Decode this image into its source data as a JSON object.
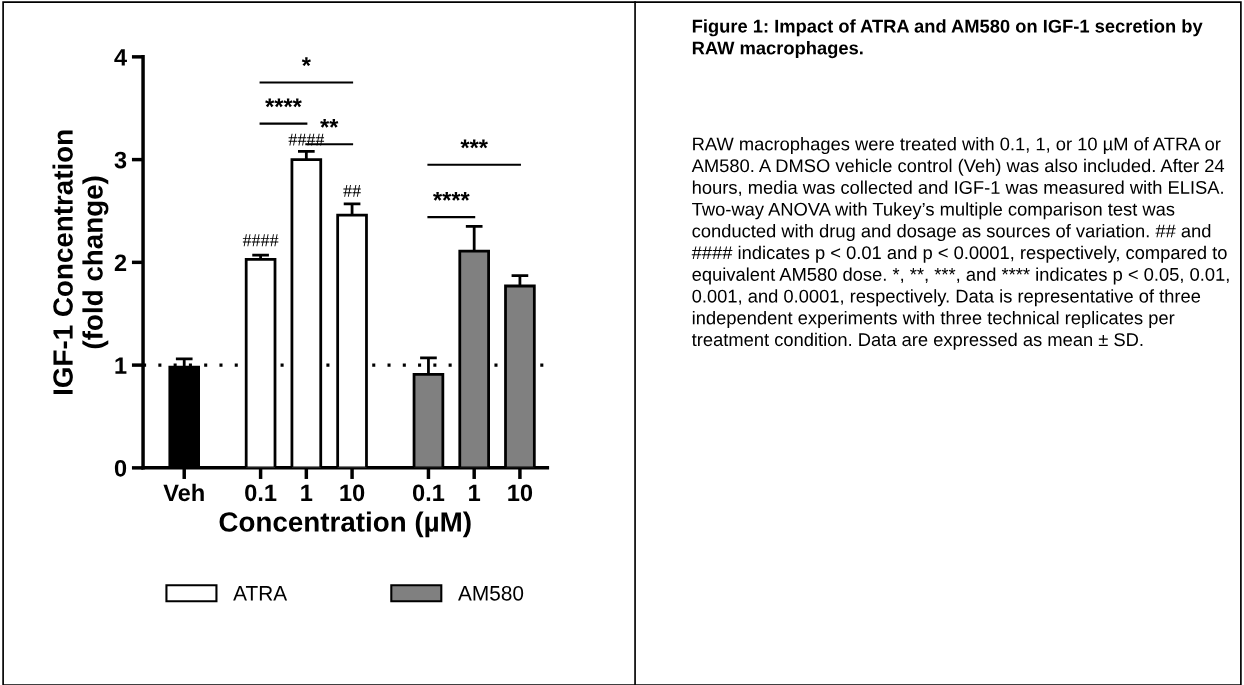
{
  "chart_data": {
    "type": "bar",
    "ylabel": "IGF-1 Concentration\n(fold change)",
    "xlabel": "Concentration (µM)",
    "title": "Figure 1: Impact of ATRA and AM580 on IGF-1 secretion by RAW macrophages.",
    "categories": [
      "Veh",
      "0.1",
      "1",
      "10",
      "0.1",
      "1",
      "10"
    ],
    "series": [
      {
        "color": "#000000",
        "values": [
          0.98,
          null,
          null,
          null,
          null,
          null,
          null
        ],
        "errors": [
          0.08,
          null,
          null,
          null,
          null,
          null,
          null
        ]
      },
      {
        "name": "ATRA",
        "color": "#ffffff",
        "values": [
          null,
          2.03,
          3.0,
          2.46,
          null,
          null,
          null
        ],
        "errors": [
          null,
          0.04,
          0.08,
          0.11,
          null,
          null,
          null
        ]
      },
      {
        "name": "AM580",
        "color": "#808080",
        "values": [
          null,
          null,
          null,
          null,
          0.91,
          2.11,
          1.77
        ],
        "errors": [
          null,
          null,
          null,
          null,
          0.16,
          0.24,
          0.1
        ]
      }
    ],
    "ylim": [
      0,
      4
    ],
    "yticks": [
      0,
      1,
      2,
      3,
      4
    ],
    "grid": false,
    "legend": "bottom",
    "ref_lines": [
      {
        "axis": "y",
        "value": 1,
        "line_style": "dotted",
        "color": "#000000"
      }
    ],
    "annotations": [
      "*",
      "****",
      "**",
      "####",
      "##",
      "####",
      "***",
      "****",
      "RAW macrophages were treated with 0.1, 1, or 10 µM of ATRA or AM580. A DMSO vehicle control (Veh) was also included. After 24 hours, media was collected and IGF-1 was measured with ELISA. Two-way ANOVA with Tukey’s multiple comparison test was conducted with drug and dosage as sources of variation. ## and #### indicates p < 0.01 and p < 0.0001, respectively, compared to equivalent AM580 dose. *, **, ***, and **** indicates p < 0.05, 0.01, 0.001, and 0.0001, respectively. Data is representative of three independent experiments with three technical replicates per treatment condition. Data are expressed as mean ± SD."
    ]
  }
}
